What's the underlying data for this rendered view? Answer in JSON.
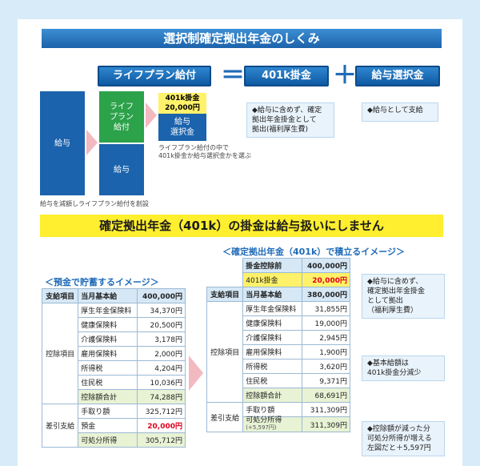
{
  "top": {
    "banner": "選択制確定拠出年金のしくみ",
    "pill_lifeplan": "ライフプラン給付",
    "equals": "＝",
    "pill_401k": "401k掛金",
    "plus": "＋",
    "pill_salary_select": "給与選択金",
    "callout_401k": [
      "◆給与に含めず、確定",
      "拠出年金掛金として",
      "拠出(福利厚生費)"
    ],
    "callout_salary": "◆給与として支給",
    "box_salary": "給与",
    "box_lifeplan_green": [
      "ライフ",
      "プラン",
      "給付"
    ],
    "box_salary_bottom": "給与",
    "yellow_label": [
      "401k掛金",
      "20,000円"
    ],
    "box_salary_select": [
      "給与",
      "選択金"
    ],
    "note_choose": [
      "ライフプラン給付の中で",
      "401k掛金か給与選択金かを選ぶ"
    ],
    "note_reduce": "給与を減額しライフプラン給付を創設"
  },
  "middle": {
    "banner": "確定拠出年金（401k）の掛金は給与扱いにしません"
  },
  "left_table": {
    "title": "＜預金で貯蓄するイメージ＞",
    "header": [
      "支給項目",
      "当月基本給",
      "400,000円"
    ],
    "deduct_label": "控除項目",
    "deduct_rows": [
      [
        "厚生年金保険料",
        "34,370円"
      ],
      [
        "健康保険料",
        "20,500円"
      ],
      [
        "介護保険料",
        "3,178円"
      ],
      [
        "雇用保険料",
        "2,000円"
      ],
      [
        "所得税",
        "4,204円"
      ],
      [
        "住民税",
        "10,036円"
      ],
      [
        "控除額合計",
        "74,288円"
      ]
    ],
    "pay_label": "差引支給",
    "pay_rows": [
      [
        "手取り額",
        "325,712円"
      ],
      [
        "預金",
        "20,000円"
      ],
      [
        "可処分所得",
        "305,712円"
      ]
    ]
  },
  "right_table": {
    "title": "＜確定拠出年金（401k）で積立るイメージ＞",
    "top_rows": [
      [
        "掛金控除前",
        "400,000円"
      ],
      [
        "401k掛金",
        "20,000円"
      ]
    ],
    "header": [
      "支給項目",
      "当月基本給",
      "380,000円"
    ],
    "deduct_label": "控除項目",
    "deduct_rows": [
      [
        "厚生年金保険料",
        "31,855円"
      ],
      [
        "健康保険料",
        "19,000円"
      ],
      [
        "介護保険料",
        "2,945円"
      ],
      [
        "雇用保険料",
        "1,900円"
      ],
      [
        "所得税",
        "3,620円"
      ],
      [
        "住民税",
        "9,371円"
      ],
      [
        "控除額合計",
        "68,691円"
      ]
    ],
    "pay_label": "差引支給",
    "pay_rows": [
      [
        "手取り額",
        "311,309円"
      ],
      [
        "可処分所得",
        "311,309円"
      ]
    ],
    "pay_sub": "(+5,597円)"
  },
  "callouts_right": {
    "c1": [
      "◆給与に含めず、",
      "確定拠出年金掛金",
      "として拠出",
      "（福利厚生費）"
    ],
    "c2": [
      "◆基本給額は",
      "401k掛金分減少"
    ],
    "c3": [
      "◆控除額が減った分",
      "可処分所得が増える",
      "左図だと＋5,597円"
    ]
  },
  "colors": {
    "blue": "#1c63ad",
    "green": "#2ca24a",
    "yellow": "#ffef2e",
    "red": "#e0001b"
  }
}
